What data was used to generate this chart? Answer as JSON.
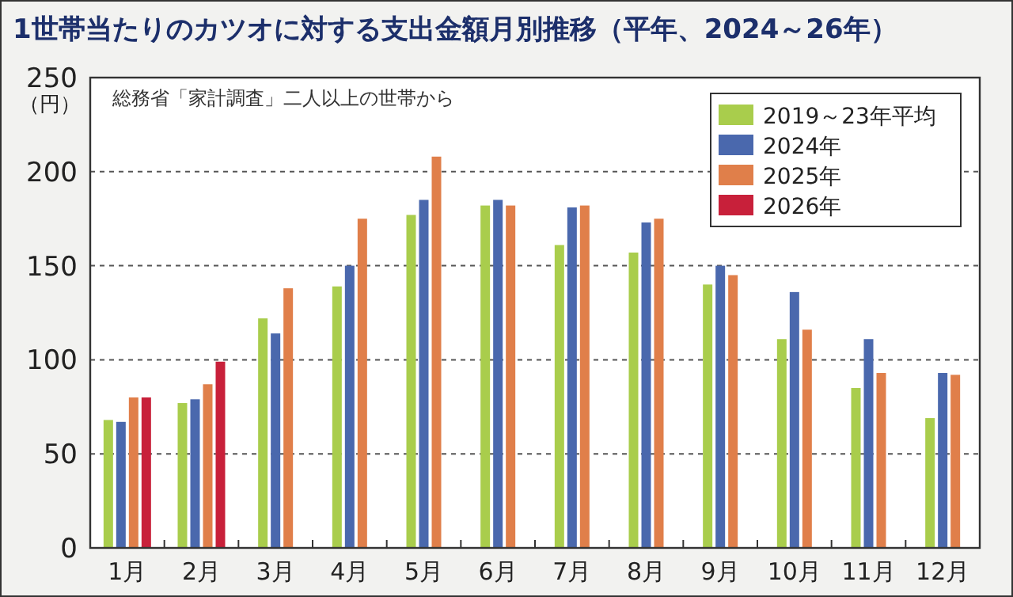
{
  "chart_data": {
    "type": "bar",
    "title": "1世帯当たりのカツオに対する支出金額月別推移（平年、2024～26年）",
    "ylabel": "（円）",
    "annotations": [
      "総務省「家計調査」二人以上の世帯から"
    ],
    "categories": [
      "1月",
      "2月",
      "3月",
      "4月",
      "5月",
      "6月",
      "7月",
      "8月",
      "9月",
      "10月",
      "11月",
      "12月"
    ],
    "series": [
      {
        "name": "2019～23年平均",
        "color": "#a9cd4c",
        "values": [
          68,
          77,
          122,
          139,
          177,
          182,
          161,
          157,
          140,
          111,
          85,
          69
        ]
      },
      {
        "name": "2024年",
        "color": "#4a68ad",
        "values": [
          67,
          79,
          114,
          150,
          185,
          185,
          181,
          173,
          150,
          136,
          111,
          93
        ]
      },
      {
        "name": "2025年",
        "color": "#e07f4a",
        "values": [
          80,
          87,
          138,
          175,
          208,
          182,
          182,
          175,
          145,
          116,
          93,
          92
        ]
      },
      {
        "name": "2026年",
        "color": "#c8203a",
        "values": [
          80,
          99,
          null,
          null,
          null,
          null,
          null,
          null,
          null,
          null,
          null,
          null
        ]
      }
    ],
    "ylim": [
      0,
      250
    ],
    "yticks": [
      0,
      50,
      100,
      150,
      200,
      250
    ],
    "grid": "y",
    "legend": "top right"
  }
}
